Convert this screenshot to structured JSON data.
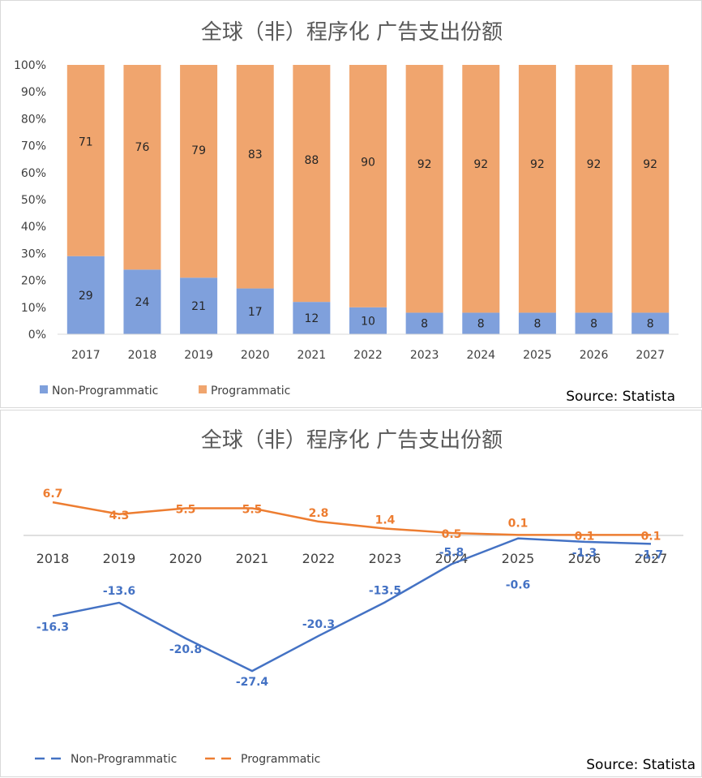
{
  "chart_data": [
    {
      "type": "bar",
      "stacked": true,
      "title": "全球（非）程序化 广告支出份额",
      "categories": [
        "2017",
        "2018",
        "2019",
        "2020",
        "2021",
        "2022",
        "2023",
        "2024",
        "2025",
        "2026",
        "2027"
      ],
      "series": [
        {
          "name": "Non-Programmatic",
          "color": "#7FA0DC",
          "values": [
            29,
            24,
            21,
            17,
            12,
            10,
            8,
            8,
            8,
            8,
            8
          ]
        },
        {
          "name": "Programmatic",
          "color": "#F0A56E",
          "values": [
            71,
            76,
            79,
            83,
            88,
            90,
            92,
            92,
            92,
            92,
            92
          ]
        }
      ],
      "yticks": [
        "0%",
        "10%",
        "20%",
        "30%",
        "40%",
        "50%",
        "60%",
        "70%",
        "80%",
        "90%",
        "100%"
      ],
      "ylim": [
        0,
        100
      ],
      "legend": "bottom-left",
      "source": "Source: Statista"
    },
    {
      "type": "line",
      "title": "全球（非）程序化 广告支出份额",
      "categories": [
        "2018",
        "2019",
        "2020",
        "2021",
        "2022",
        "2023",
        "2024",
        "2025",
        "2026",
        "2027"
      ],
      "series": [
        {
          "name": "Non-Programmatic",
          "color": "#4472C4",
          "values": [
            -16.3,
            -13.6,
            -20.8,
            -27.4,
            -20.3,
            -13.5,
            -5.8,
            -0.6,
            -1.3,
            -1.7
          ]
        },
        {
          "name": "Programmatic",
          "color": "#ED7D31",
          "values": [
            6.7,
            4.3,
            5.5,
            5.5,
            2.8,
            1.4,
            0.5,
            0.1,
            0.1,
            0.1
          ]
        }
      ],
      "ylim": [
        -30,
        8
      ],
      "legend": "bottom-left",
      "source": "Source: Statista"
    }
  ]
}
